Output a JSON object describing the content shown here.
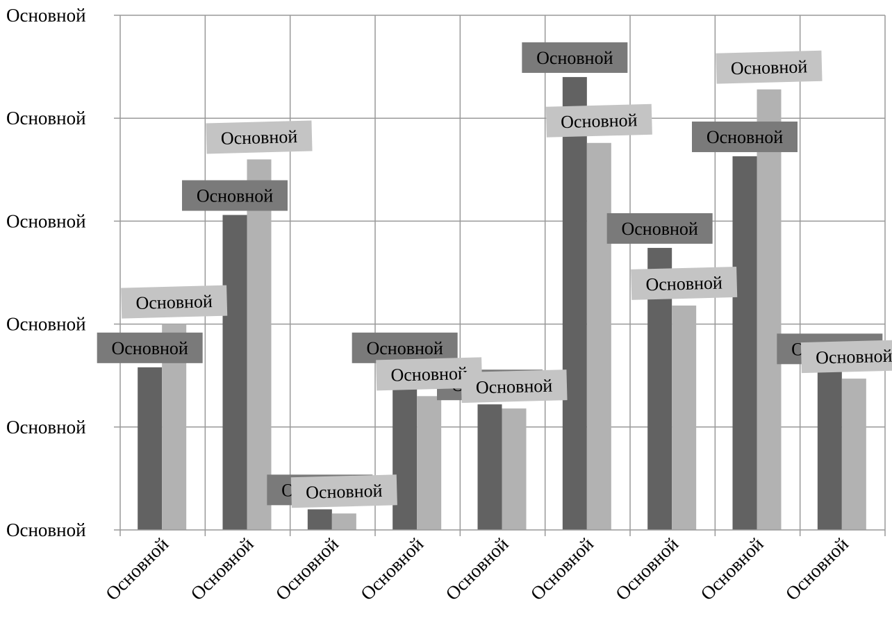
{
  "chart_data": {
    "type": "bar",
    "categories": [
      "Основной",
      "Основной",
      "Основной",
      "Основной",
      "Основной",
      "Основной",
      "Основной",
      "Основной",
      "Основной"
    ],
    "series": [
      {
        "values": [
          1.58,
          3.06,
          0.2,
          1.58,
          1.22,
          4.4,
          2.74,
          3.63,
          1.57
        ],
        "data_labels": [
          "Основной",
          "Основной",
          "Основной",
          "Основной",
          "Основной",
          "Основной",
          "Основной",
          "Основной",
          "Основной"
        ],
        "color": "#626262"
      },
      {
        "values": [
          2.0,
          3.6,
          0.16,
          1.3,
          1.18,
          3.76,
          2.18,
          4.28,
          1.47
        ],
        "data_labels": [
          "Основной",
          "Основной",
          "Основной",
          "Основной",
          "Основной",
          "Основной",
          "Основной",
          "Основной",
          "Основной"
        ],
        "color": "#b2b2b2"
      }
    ],
    "y_tick_labels": [
      "Основной",
      "Основной",
      "Основной",
      "Основной",
      "Основной",
      "Основной"
    ],
    "ylim": [
      0,
      5
    ],
    "grid": true,
    "title": "",
    "xlabel": "",
    "ylabel": "",
    "legend": "none",
    "colors": {
      "gridline": "#999999",
      "label_text": "#000000"
    }
  }
}
